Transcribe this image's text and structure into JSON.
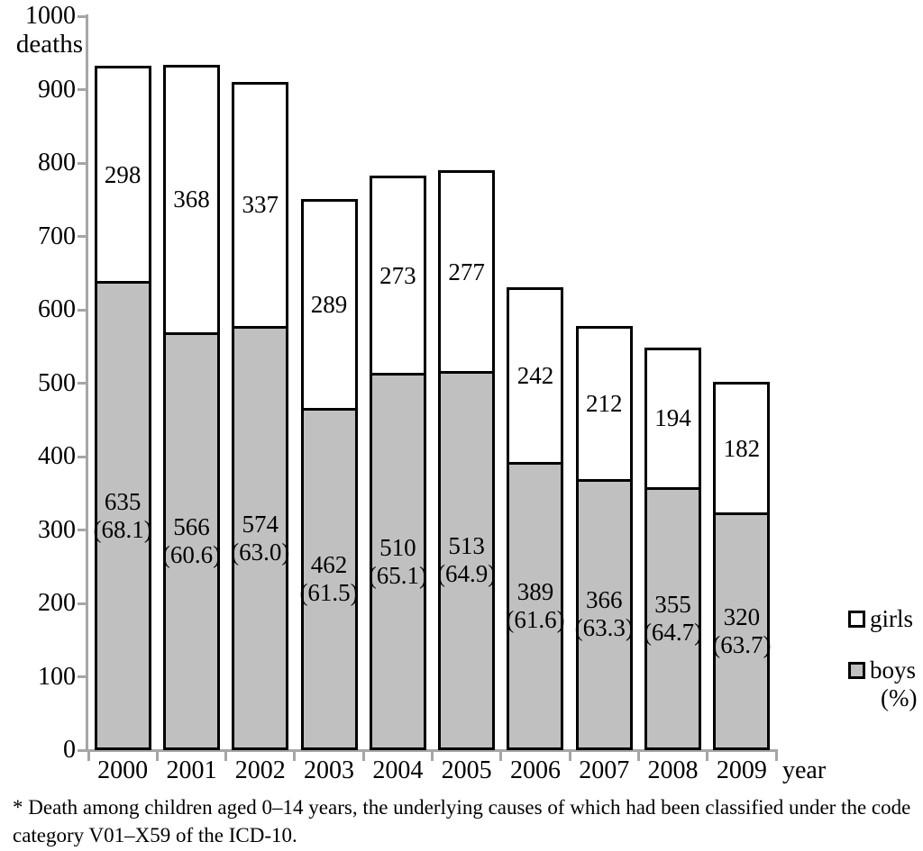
{
  "chart_data": {
    "type": "bar",
    "stacked": true,
    "categories": [
      "2000",
      "2001",
      "2002",
      "2003",
      "2004",
      "2005",
      "2006",
      "2007",
      "2008",
      "2009"
    ],
    "series": [
      {
        "name": "boys",
        "color": "#c0c0c0",
        "values": [
          635,
          566,
          574,
          462,
          510,
          513,
          389,
          366,
          355,
          320
        ],
        "percent_labels": [
          "(68.1)",
          "(60.6)",
          "(63.0)",
          "(61.5)",
          "(65.1)",
          "(64.9)",
          "(61.6)",
          "(63.3)",
          "(64.7)",
          "(63.7)"
        ]
      },
      {
        "name": "girls",
        "color": "#ffffff",
        "values": [
          298,
          368,
          337,
          289,
          273,
          277,
          242,
          212,
          194,
          182
        ]
      }
    ],
    "totals": [
      933,
      934,
      911,
      751,
      783,
      790,
      631,
      578,
      549,
      502
    ],
    "y_axis": {
      "min": 0,
      "max": 1000,
      "step": 100,
      "unit_label": "deaths"
    },
    "x_axis": {
      "label": "year"
    },
    "legend_position": "right",
    "grid": false,
    "legend": [
      {
        "label": "girls",
        "sublabel": "",
        "color": "#ffffff"
      },
      {
        "label": "boys",
        "sublabel": "(%)",
        "color": "#c0c0c0"
      }
    ],
    "colors": {
      "bar_border": "#000000",
      "axis": "#a6a6a6",
      "text": "#000000"
    }
  },
  "footnote": "* Death among children aged 0–14 years, the underlying causes of which had been classified under the code category V01–X59 of the ICD-10."
}
